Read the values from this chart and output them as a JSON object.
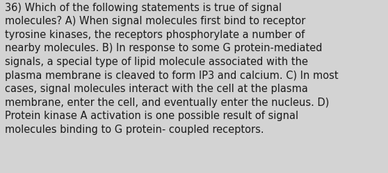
{
  "background_color": "#d3d3d3",
  "lines": [
    "36) Which of the following statements is true of signal",
    "molecules? A) When signal molecules first bind to receptor",
    "tyrosine kinases, the receptors phosphorylate a number of",
    "nearby molecules. B) In response to some G protein-mediated",
    "signals, a special type of lipid molecule associated with the",
    "plasma membrane is cleaved to form IP3 and calcium. C) In most",
    "cases, signal molecules interact with the cell at the plasma",
    "membrane, enter the cell, and eventually enter the nucleus. D)",
    "Protein kinase A activation is one possible result of signal",
    "molecules binding to G protein- coupled receptors."
  ],
  "font_size": 10.5,
  "font_color": "#1a1a1a",
  "font_family": "DejaVu Sans",
  "fig_width": 5.58,
  "fig_height": 2.51,
  "dpi": 100
}
